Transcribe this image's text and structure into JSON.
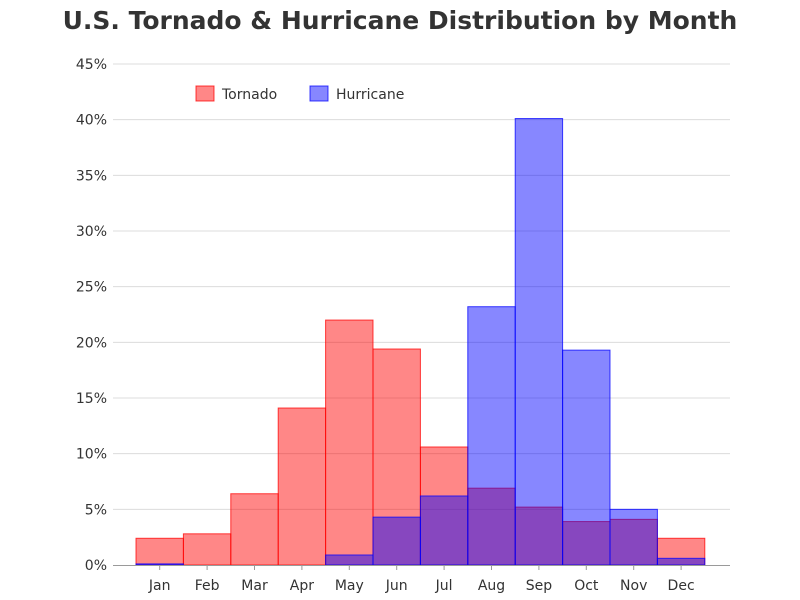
{
  "chart_data": {
    "type": "bar",
    "title": "U.S. Tornado & Hurricane Distribution by Month",
    "xlabel": "",
    "ylabel": "",
    "categories": [
      "Jan",
      "Feb",
      "Mar",
      "Apr",
      "May",
      "Jun",
      "Jul",
      "Aug",
      "Sep",
      "Oct",
      "Nov",
      "Dec"
    ],
    "series": [
      {
        "name": "Tornado",
        "color": "#ff0000",
        "values": [
          2.4,
          2.8,
          6.4,
          14.1,
          22.0,
          19.4,
          10.6,
          6.9,
          5.2,
          3.9,
          4.1,
          2.4
        ]
      },
      {
        "name": "Hurricane",
        "color": "#0000ff",
        "values": [
          0.1,
          0.0,
          0.0,
          0.0,
          0.9,
          4.3,
          6.2,
          23.2,
          40.1,
          19.3,
          5.0,
          0.6
        ]
      }
    ],
    "ylim": [
      0,
      45
    ],
    "yticks": [
      "0%",
      "5%",
      "10%",
      "15%",
      "20%",
      "25%",
      "30%",
      "35%",
      "40%",
      "45%"
    ],
    "ytick_values": [
      0,
      5,
      10,
      15,
      20,
      25,
      30,
      35,
      40,
      45
    ],
    "grid": true,
    "legend_position": "top-left"
  }
}
